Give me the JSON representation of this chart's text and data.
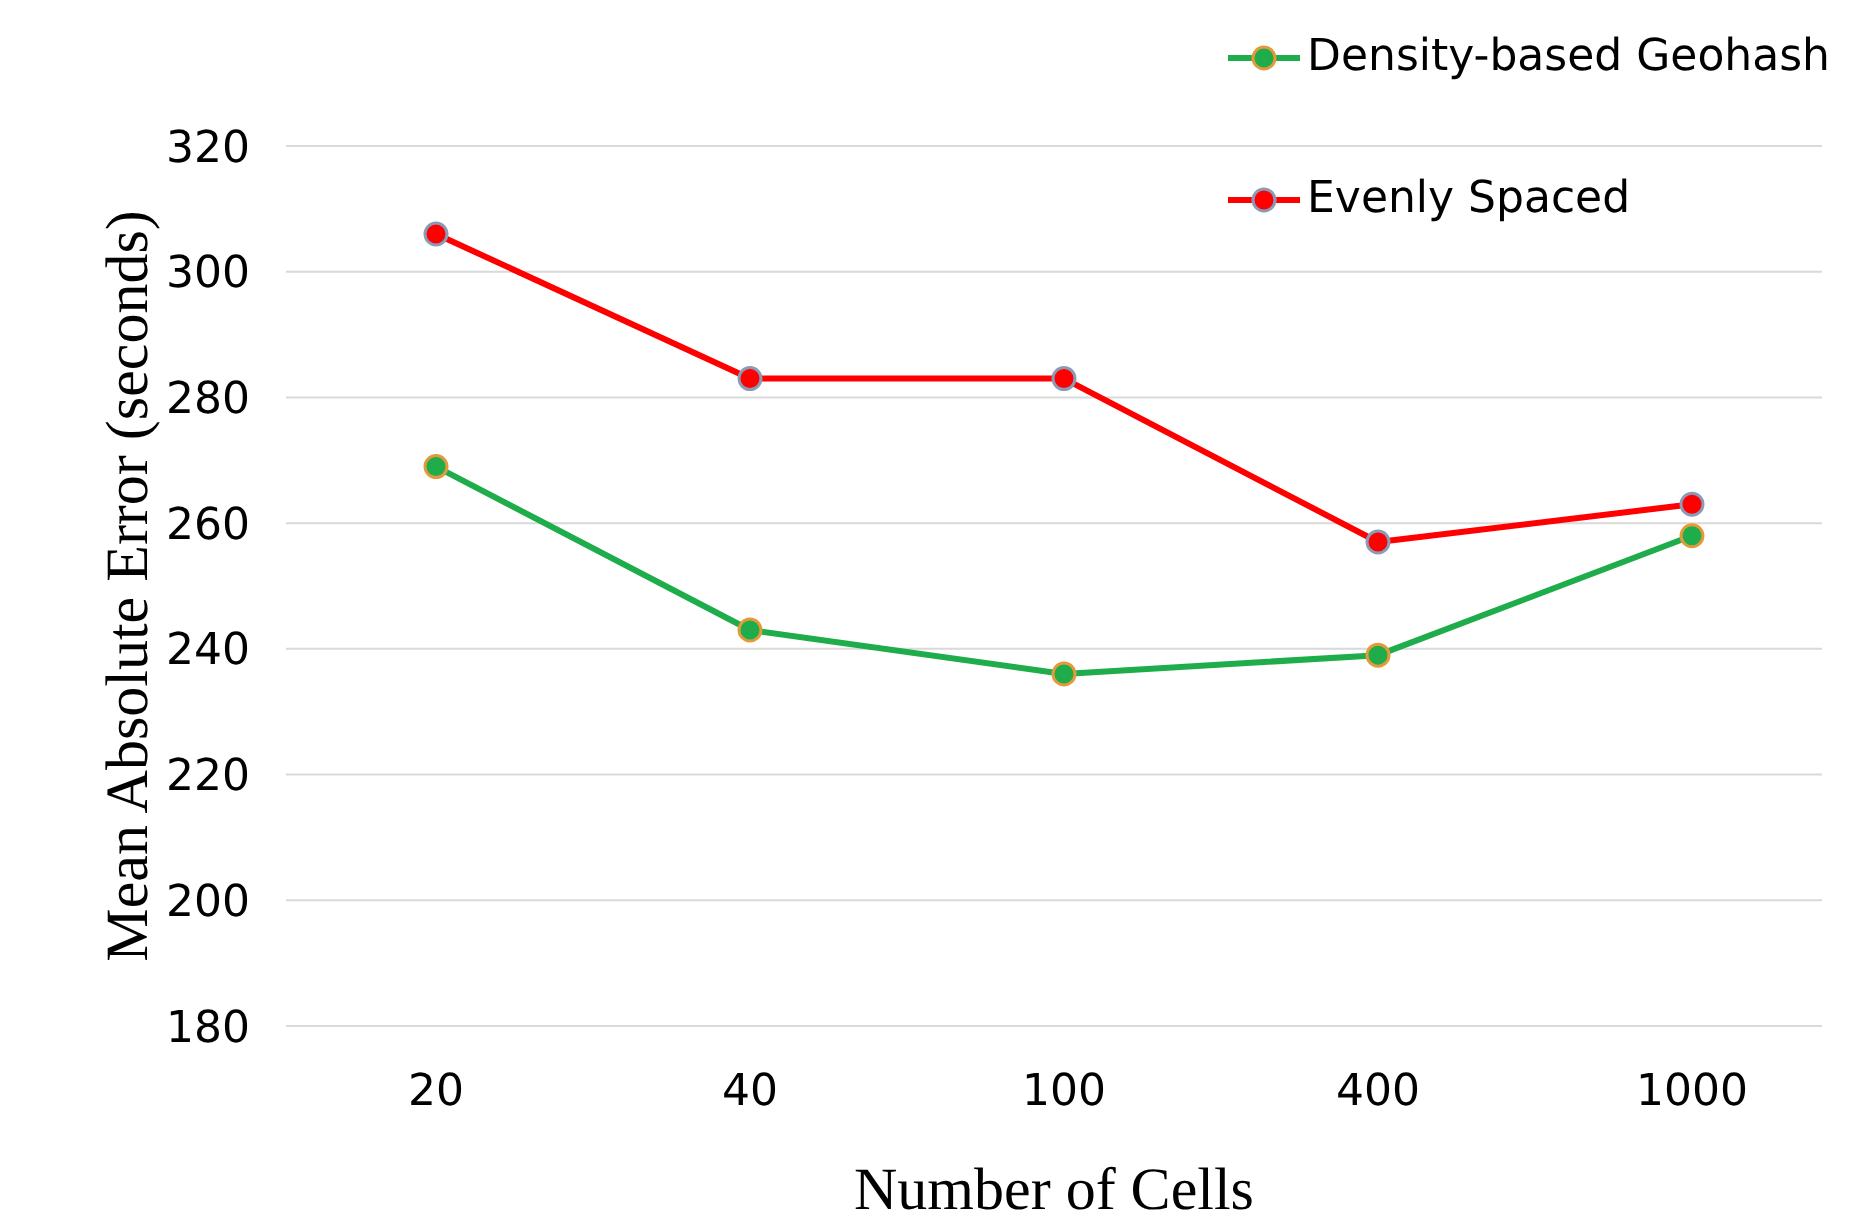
{
  "chart_data": {
    "type": "line",
    "xlabel": "Number of Cells",
    "ylabel": "Mean Absolute Error (seconds)",
    "categories": [
      "20",
      "40",
      "100",
      "400",
      "1000"
    ],
    "series": [
      {
        "name": "Density-based Geohash",
        "color": "#1fac4b",
        "values": [
          269,
          243,
          236,
          239,
          258
        ]
      },
      {
        "name": "Evenly Spaced",
        "color": "#ff0000",
        "values": [
          306,
          283,
          283,
          257,
          263
        ]
      }
    ],
    "ylim": [
      180,
      320
    ],
    "yticks": [
      180,
      200,
      220,
      240,
      260,
      280,
      300,
      320
    ],
    "grid": "y",
    "legend": "top right",
    "marker": "circle",
    "line_style": "solid"
  }
}
